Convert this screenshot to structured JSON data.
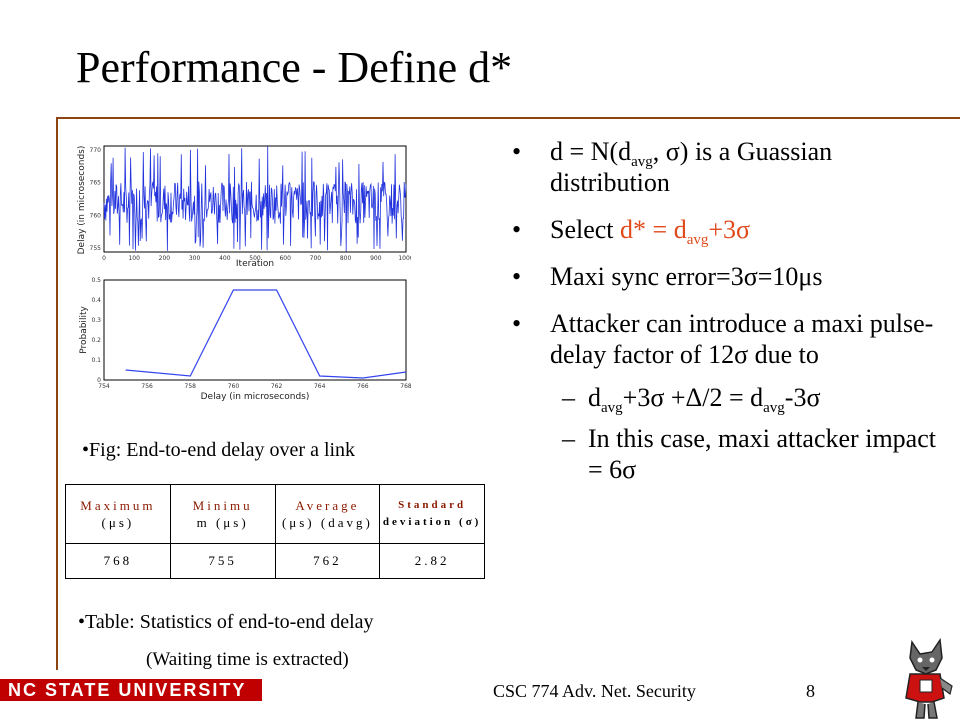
{
  "slide": {
    "title": "Performance - Define d*",
    "bullets": {
      "b1_a": "d = N(d",
      "b1_sub": "avg",
      "b1_b": ", σ)  is a Guassian distribution",
      "b2_a": "Select ",
      "b2_b": "d* = d",
      "b2_sub": "avg",
      "b2_c": "+3σ",
      "b3": "Maxi sync error=3σ=10μs",
      "b4": "Attacker can introduce a maxi pulse-delay factor of 12σ due to",
      "s1_a": "d",
      "s1_sub1": "avg",
      "s1_b": "+3σ +Δ/2 = d",
      "s1_sub2": "avg",
      "s1_c": "-3σ",
      "s2": "In this case, maxi attacker impact = 6σ",
      "bullet_glyph": "•",
      "dash_glyph": "–"
    },
    "figure": {
      "caption": "Fig: End-to-end delay over a link",
      "top_plot": {
        "ylabel": "Delay (in microseconds)",
        "xlabel": "Iteration",
        "yticks": [
          "770",
          "765",
          "760",
          "755"
        ],
        "xticks": [
          "0",
          "100",
          "200",
          "300",
          "400",
          "500",
          "600",
          "700",
          "800",
          "900",
          "1000"
        ]
      },
      "bottom_plot": {
        "ylabel": "Probability",
        "xlabel": "Delay (in microseconds)",
        "yticks": [
          "0.5",
          "0.4",
          "0.3",
          "0.2",
          "0.1",
          "0"
        ],
        "xticks": [
          "754",
          "756",
          "758",
          "760",
          "762",
          "764",
          "766",
          "768"
        ]
      }
    },
    "table": {
      "headers": {
        "maximum": "Maximum",
        "maximum_unit": "(μs)",
        "minimum": "Minimu",
        "minimum_unit": "m (μs)",
        "average": "Average",
        "average_unit": "(μs) (davg)",
        "stddev": "Standard",
        "stddev_unit": "deviation (σ)"
      },
      "values": {
        "maximum": "768",
        "minimum": "755",
        "average": "762",
        "stddev": "2.82"
      },
      "caption_line1": "Table: Statistics of end-to-end delay",
      "caption_line2": "(Waiting time is extracted)"
    },
    "footer": {
      "logo": "NC STATE UNIVERSITY",
      "course": "CSC 774 Adv. Net. Security",
      "page": "8"
    }
  },
  "chart_data": [
    {
      "type": "line",
      "title": "",
      "xlabel": "Iteration",
      "ylabel": "Delay (in microseconds)",
      "xlim": [
        0,
        1000
      ],
      "ylim": [
        755,
        770
      ],
      "note_series": "dense noisy trace between roughly 758 and 766 with spikes to 770 and dips to 755"
    },
    {
      "type": "line",
      "title": "",
      "xlabel": "Delay (in microseconds)",
      "ylabel": "Probability",
      "x": [
        755,
        758,
        760,
        762,
        764,
        766,
        768
      ],
      "y": [
        0.05,
        0.02,
        0.45,
        0.45,
        0.02,
        0.01,
        0.04
      ],
      "xlim": [
        754,
        768
      ],
      "ylim": [
        0,
        0.5
      ]
    }
  ]
}
